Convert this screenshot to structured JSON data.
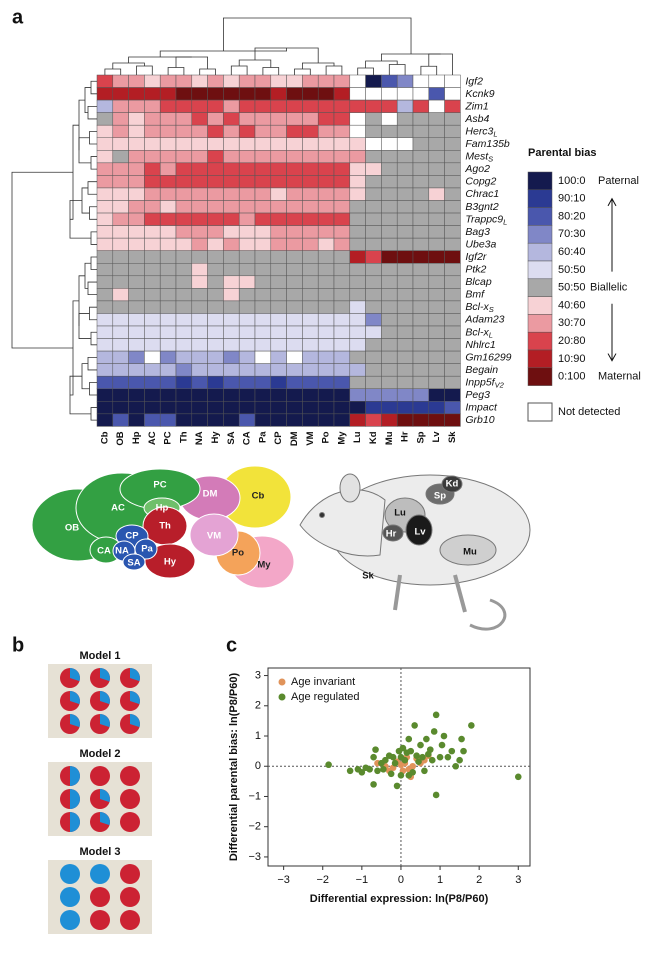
{
  "panel_labels": [
    "a",
    "b",
    "c"
  ],
  "chart_data": [
    {
      "type": "heatmap",
      "columns": [
        "Cb",
        "OB",
        "Hp",
        "AC",
        "PC",
        "Th",
        "NA",
        "Hy",
        "SA",
        "CA",
        "Pa",
        "CP",
        "DM",
        "VM",
        "Po",
        "My",
        "Lu",
        "Kd",
        "Mu",
        "Hr",
        "Sp",
        "Lv",
        "Sk"
      ],
      "column_colors": [
        "#c9a235",
        "#2e8b3a",
        "#2e8b3a",
        "#2e8b3a",
        "#2e8b3a",
        "#c0202a",
        "#1f4fa8",
        "#c0202a",
        "#1f4fa8",
        "#2e8b3a",
        "#1f4fa8",
        "#1f4fa8",
        "#c060b0",
        "#c060b0",
        "#e8913a",
        "#c060b0",
        "#111111",
        "#111111",
        "#111111",
        "#111111",
        "#111111",
        "#111111",
        "#111111"
      ],
      "rows": [
        {
          "name": "Igf2"
        },
        {
          "name": "Kcnk9"
        },
        {
          "name": "Zim1"
        },
        {
          "name": "Asb4"
        },
        {
          "name": "Herc3",
          "sub": "L"
        },
        {
          "name": "Fam135b"
        },
        {
          "name": "Mest",
          "sub": "S"
        },
        {
          "name": "Ago2"
        },
        {
          "name": "Copg2"
        },
        {
          "name": "Chrac1"
        },
        {
          "name": "B3gnt2"
        },
        {
          "name": "Trappc9",
          "sub": "L"
        },
        {
          "name": "Bag3"
        },
        {
          "name": "Ube3a"
        },
        {
          "name": "Igf2r"
        },
        {
          "name": "Ptk2"
        },
        {
          "name": "Blcap"
        },
        {
          "name": "Bmf"
        },
        {
          "name": "Bcl-x",
          "sub": "S"
        },
        {
          "name": "Adam23"
        },
        {
          "name": "Bcl-x",
          "sub": "L"
        },
        {
          "name": "Nhlrc1"
        },
        {
          "name": "Gm16299"
        },
        {
          "name": "Begain"
        },
        {
          "name": "Inpp5f",
          "sub": "V2"
        },
        {
          "name": "Peg3"
        },
        {
          "name": "Impact"
        },
        {
          "name": "Grb10"
        }
      ],
      "values": [
        [
          9,
          8,
          8,
          7,
          8,
          8,
          7,
          8,
          7,
          8,
          8,
          7,
          7,
          8,
          8,
          8,
          null,
          0,
          2,
          3,
          null,
          null,
          null
        ],
        [
          10,
          10,
          10,
          10,
          10,
          11,
          11,
          11,
          11,
          11,
          11,
          10,
          11,
          11,
          11,
          10,
          null,
          null,
          null,
          null,
          null,
          2,
          null
        ],
        [
          4,
          8,
          8,
          8,
          9,
          9,
          9,
          9,
          8,
          9,
          9,
          9,
          9,
          9,
          9,
          9,
          9,
          9,
          9,
          4,
          9,
          null,
          9
        ],
        [
          6,
          8,
          7,
          8,
          8,
          8,
          9,
          8,
          9,
          8,
          8,
          8,
          8,
          8,
          9,
          9,
          null,
          6,
          null,
          6,
          6,
          6,
          6
        ],
        [
          7,
          8,
          7,
          8,
          8,
          8,
          8,
          9,
          8,
          9,
          8,
          8,
          9,
          9,
          8,
          8,
          null,
          6,
          6,
          6,
          6,
          6,
          6
        ],
        [
          7,
          7,
          7,
          7,
          7,
          7,
          7,
          7,
          7,
          7,
          7,
          7,
          7,
          7,
          7,
          7,
          7,
          null,
          null,
          null,
          6,
          6,
          6
        ],
        [
          7,
          6,
          8,
          8,
          8,
          8,
          8,
          9,
          8,
          8,
          8,
          8,
          8,
          8,
          8,
          8,
          8,
          6,
          6,
          6,
          6,
          6,
          6
        ],
        [
          8,
          8,
          8,
          9,
          8,
          9,
          9,
          9,
          9,
          9,
          9,
          9,
          9,
          9,
          9,
          9,
          7,
          7,
          6,
          6,
          6,
          6,
          6
        ],
        [
          8,
          8,
          8,
          9,
          9,
          9,
          9,
          9,
          9,
          9,
          9,
          9,
          9,
          9,
          9,
          9,
          7,
          6,
          6,
          6,
          6,
          6,
          6
        ],
        [
          7,
          7,
          7,
          8,
          8,
          8,
          8,
          8,
          8,
          8,
          8,
          7,
          8,
          8,
          8,
          8,
          7,
          6,
          6,
          6,
          6,
          7,
          6
        ],
        [
          7,
          7,
          8,
          8,
          7,
          8,
          8,
          8,
          8,
          8,
          8,
          8,
          8,
          8,
          8,
          8,
          6,
          6,
          6,
          6,
          6,
          6,
          6
        ],
        [
          7,
          8,
          8,
          9,
          9,
          9,
          9,
          9,
          9,
          8,
          9,
          9,
          9,
          9,
          9,
          9,
          6,
          6,
          6,
          6,
          6,
          6,
          6
        ],
        [
          7,
          7,
          7,
          7,
          7,
          8,
          8,
          8,
          7,
          7,
          7,
          8,
          8,
          8,
          8,
          8,
          6,
          6,
          6,
          6,
          6,
          6,
          6
        ],
        [
          7,
          7,
          7,
          7,
          7,
          7,
          8,
          7,
          8,
          7,
          7,
          8,
          8,
          8,
          7,
          8,
          6,
          6,
          6,
          6,
          6,
          6,
          6
        ],
        [
          6,
          6,
          6,
          6,
          6,
          6,
          6,
          6,
          6,
          6,
          6,
          6,
          6,
          6,
          6,
          6,
          10,
          9,
          11,
          11,
          11,
          11,
          11
        ],
        [
          6,
          6,
          6,
          6,
          6,
          6,
          7,
          6,
          6,
          6,
          6,
          6,
          6,
          6,
          6,
          6,
          6,
          6,
          6,
          6,
          6,
          6,
          6
        ],
        [
          6,
          6,
          6,
          6,
          6,
          6,
          7,
          6,
          7,
          7,
          6,
          6,
          6,
          6,
          6,
          6,
          6,
          6,
          6,
          6,
          6,
          6,
          6
        ],
        [
          6,
          7,
          6,
          6,
          6,
          6,
          6,
          6,
          7,
          6,
          6,
          6,
          6,
          6,
          6,
          6,
          6,
          6,
          6,
          6,
          6,
          6,
          6
        ],
        [
          6,
          6,
          6,
          6,
          6,
          6,
          6,
          6,
          6,
          6,
          6,
          6,
          6,
          6,
          6,
          6,
          5,
          6,
          6,
          6,
          6,
          6,
          6
        ],
        [
          5,
          5,
          5,
          5,
          5,
          5,
          5,
          5,
          5,
          5,
          5,
          5,
          5,
          5,
          5,
          5,
          5,
          3,
          6,
          6,
          6,
          6,
          6
        ],
        [
          5,
          5,
          5,
          5,
          5,
          5,
          5,
          5,
          5,
          5,
          5,
          5,
          5,
          5,
          5,
          5,
          5,
          5,
          6,
          6,
          6,
          6,
          6
        ],
        [
          5,
          5,
          5,
          5,
          5,
          5,
          5,
          5,
          5,
          5,
          5,
          5,
          5,
          5,
          5,
          5,
          5,
          6,
          6,
          6,
          6,
          6,
          6
        ],
        [
          4,
          4,
          3,
          null,
          3,
          4,
          4,
          4,
          3,
          4,
          null,
          4,
          null,
          4,
          4,
          4,
          6,
          6,
          6,
          6,
          6,
          6,
          6
        ],
        [
          4,
          4,
          4,
          4,
          4,
          3,
          4,
          4,
          4,
          4,
          4,
          4,
          4,
          4,
          4,
          4,
          4,
          6,
          6,
          6,
          6,
          6,
          6
        ],
        [
          2,
          2,
          2,
          2,
          2,
          1,
          2,
          1,
          2,
          2,
          2,
          1,
          2,
          2,
          2,
          2,
          6,
          6,
          6,
          6,
          6,
          6,
          6
        ],
        [
          0,
          0,
          0,
          0,
          0,
          0,
          0,
          0,
          0,
          0,
          0,
          0,
          0,
          0,
          0,
          0,
          3,
          3,
          3,
          3,
          3,
          0,
          0
        ],
        [
          0,
          0,
          0,
          0,
          0,
          0,
          0,
          0,
          0,
          0,
          0,
          0,
          0,
          0,
          0,
          0,
          0,
          1,
          1,
          1,
          1,
          1,
          2
        ],
        [
          0,
          2,
          0,
          2,
          2,
          0,
          0,
          0,
          0,
          2,
          0,
          0,
          0,
          0,
          0,
          0,
          10,
          9,
          10,
          11,
          11,
          11,
          11
        ]
      ],
      "legend_title": "Parental bias",
      "legend": [
        {
          "label": "100:0",
          "color": "#141a4e"
        },
        {
          "label": "90:10",
          "color": "#2b3a93"
        },
        {
          "label": "80:20",
          "color": "#4a57ad"
        },
        {
          "label": "70:30",
          "color": "#8087c7"
        },
        {
          "label": "60:40",
          "color": "#b4b7de"
        },
        {
          "label": "50:50",
          "color": "#dcdcf0"
        },
        {
          "label": "50:50",
          "color": "#a8a8a8"
        },
        {
          "label": "40:60",
          "color": "#f7d2d5"
        },
        {
          "label": "30:70",
          "color": "#eb9aa1"
        },
        {
          "label": "20:80",
          "color": "#d9434d"
        },
        {
          "label": "10:90",
          "color": "#b31e24"
        },
        {
          "label": "0:100",
          "color": "#6e0f10"
        }
      ],
      "legend_sides": [
        "Paternal",
        "Biallelic",
        "Maternal"
      ],
      "not_detected": "Not detected"
    },
    {
      "type": "scatter",
      "xlabel": "Differential expression: ln(P8/P60)",
      "ylabel": "Differential parental bias: ln(P8/P60)",
      "xlim": [
        -3.4,
        3.3
      ],
      "ylim": [
        -3.3,
        3.25
      ],
      "xticks": [
        {
          "value": -3,
          "label": "−3"
        },
        {
          "value": -2,
          "label": "−2"
        },
        {
          "value": -1,
          "label": "−1"
        },
        0,
        1,
        2,
        3
      ],
      "yticks": [
        {
          "value": -3,
          "label": "−3"
        },
        {
          "value": -2,
          "label": "−2"
        },
        {
          "value": -1,
          "label": "−1"
        },
        0,
        1,
        2,
        3
      ],
      "series": [
        {
          "name": "Age invariant",
          "color": "#e0935a",
          "x": [
            -0.6,
            -0.4,
            -0.2,
            -0.1,
            0,
            0.05,
            0.1,
            0.15,
            0.2,
            0.3,
            0.4,
            0.5,
            0.6,
            0.7,
            -0.3,
            0.25
          ],
          "y": [
            0.1,
            0,
            -0.05,
            0.15,
            0.05,
            -0.15,
            0.1,
            0.3,
            -0.1,
            0,
            0.25,
            0.1,
            0.2,
            0.35,
            -0.15,
            -0.35
          ]
        },
        {
          "name": "Age regulated",
          "color": "#5a8a2e",
          "x": [
            -1.85,
            -1.3,
            -1.1,
            -1,
            -0.9,
            -0.8,
            -0.7,
            -0.65,
            -0.6,
            -0.5,
            -0.45,
            -0.4,
            -0.3,
            -0.25,
            -0.2,
            -0.15,
            -0.1,
            -0.05,
            0,
            0.05,
            0.1,
            0.15,
            0.2,
            0.25,
            0.3,
            0.35,
            0.4,
            0.45,
            0.5,
            0.55,
            0.6,
            0.65,
            0.7,
            0.75,
            0.8,
            0.85,
            0.9,
            0.9,
            1,
            1.05,
            1.1,
            1.2,
            1.3,
            1.4,
            1.5,
            1.55,
            1.6,
            1.8,
            3,
            -0.7,
            0,
            0.2
          ],
          "y": [
            0.05,
            -0.15,
            -0.1,
            -0.2,
            -0.05,
            -0.1,
            0.3,
            0.55,
            -0.15,
            0.1,
            -0.1,
            0.2,
            0.35,
            -0.25,
            0.3,
            0.1,
            -0.65,
            0.5,
            0.3,
            0.6,
            0.2,
            0.45,
            -0.3,
            0.5,
            -0.2,
            1.35,
            0.35,
            0.15,
            0.7,
            0.3,
            -0.15,
            0.9,
            0.4,
            0.55,
            0.2,
            1.15,
            -0.95,
            1.7,
            0.3,
            0.7,
            1,
            0.3,
            0.5,
            0,
            0.2,
            0.9,
            0.5,
            1.35,
            -0.35,
            -0.6,
            -0.3,
            0.9
          ]
        }
      ],
      "legend_corner": "top-left"
    }
  ],
  "brain_labels": [
    "OB",
    "AC",
    "PC",
    "Hp",
    "CA",
    "CP",
    "NA",
    "Pa",
    "SA",
    "Th",
    "Hy",
    "DM",
    "VM",
    "Po",
    "My",
    "Cb"
  ],
  "body_labels": [
    "Kd",
    "Sp",
    "Lu",
    "Lv",
    "Hr",
    "Sk",
    "Mu"
  ],
  "models": [
    "Model 1",
    "Model 2",
    "Model 3"
  ]
}
